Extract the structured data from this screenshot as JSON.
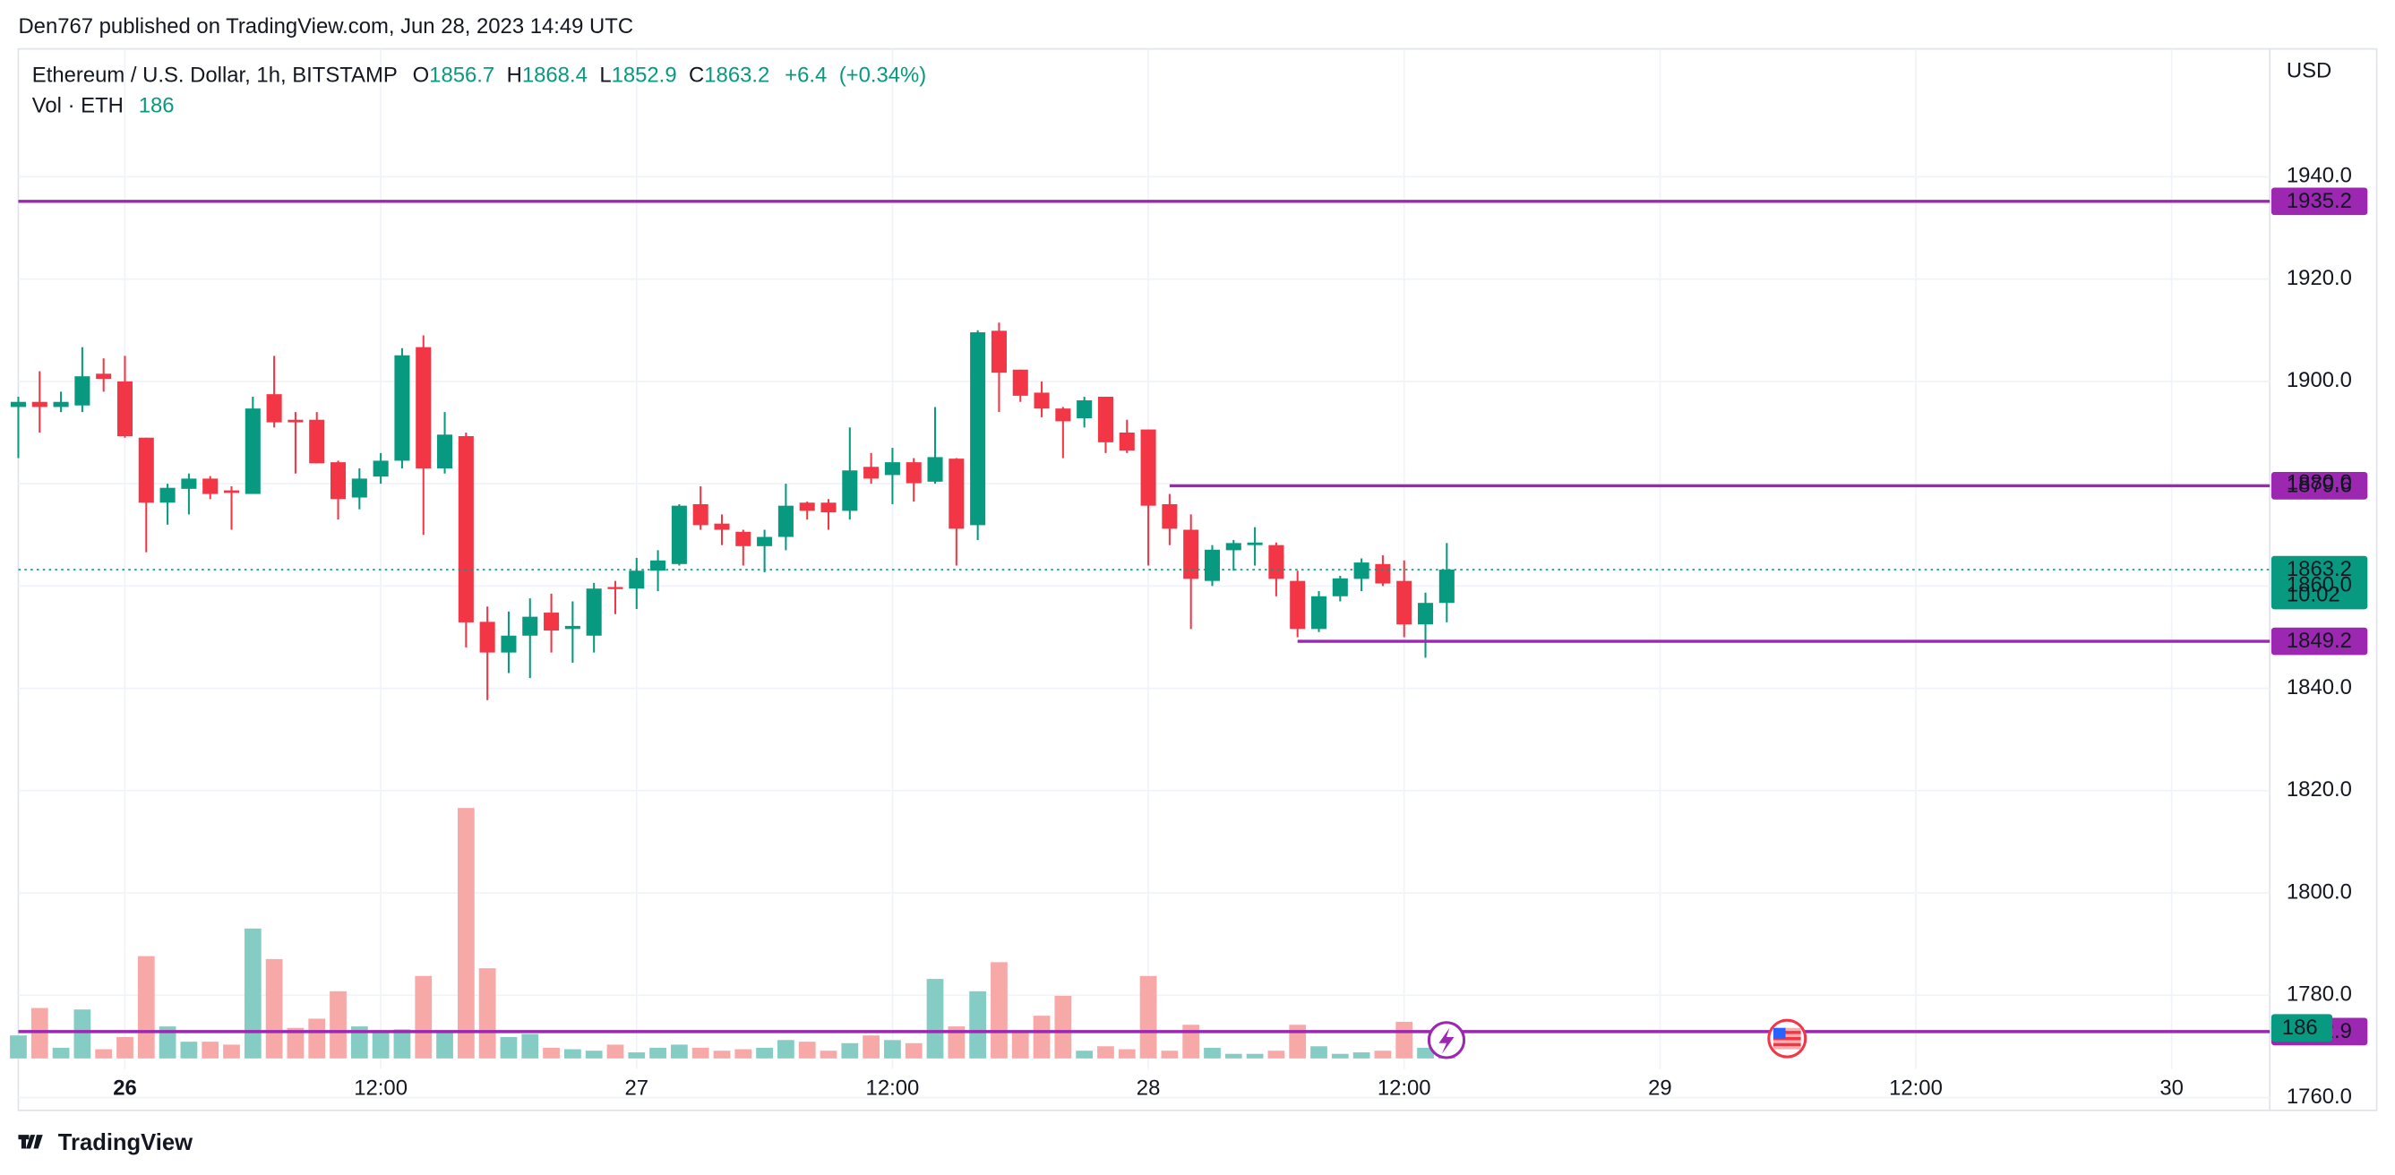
{
  "header": "Den767 published on TradingView.com, Jun 28, 2023 14:49 UTC",
  "brand": "TradingView",
  "chart_data": {
    "type": "candlestick",
    "title": "Ethereum / U.S. Dollar, 1h, BITSTAMP",
    "ohlc_labels": [
      "O",
      "H",
      "L",
      "C"
    ],
    "change": {
      "value": 6.4,
      "label": "+6.4"
    },
    "change_pct": {
      "value": 0.34,
      "label": "(+0.34%)"
    },
    "volume_label": "Vol · ETH",
    "currency": "USD",
    "countdown": "10:02",
    "up_color": "#089981",
    "down_color": "#f23645",
    "up_volume_color": "#85cdc4",
    "down_volume_color": "#f7a9a8",
    "level_color": "#9c27b0",
    "grid": true,
    "xlim": [
      -5,
      100.6
    ],
    "xticks": [
      {
        "value": 0,
        "label": "26"
      },
      {
        "value": 12,
        "label": "12:00"
      },
      {
        "value": 24,
        "label": "27"
      },
      {
        "value": 36,
        "label": "12:00"
      },
      {
        "value": 48,
        "label": "28"
      },
      {
        "value": 60,
        "label": "12:00"
      },
      {
        "value": 72,
        "label": "29"
      },
      {
        "value": 84,
        "label": "12:00"
      },
      {
        "value": 96,
        "label": "30"
      }
    ],
    "ylim": [
      1757.5,
      1965
    ],
    "yticks": [
      {
        "value": 1760,
        "label": "1760.0"
      },
      {
        "value": 1780,
        "label": "1780.0"
      },
      {
        "value": 1800,
        "label": "1800.0"
      },
      {
        "value": 1820,
        "label": "1820.0"
      },
      {
        "value": 1840,
        "label": "1840.0"
      },
      {
        "value": 1860,
        "label": "1860.0"
      },
      {
        "value": 1880,
        "label": "1880.0"
      },
      {
        "value": 1900,
        "label": "1900.0"
      },
      {
        "value": 1920,
        "label": "1920.0"
      },
      {
        "value": 1940,
        "label": "1940.0"
      }
    ],
    "levels": [
      {
        "value": 1935.2
      },
      {
        "value": 1879.6,
        "from": 49
      },
      {
        "value": 1849.2,
        "from": 55
      },
      {
        "value": 1772.9
      }
    ],
    "candles": {
      "x": [
        -5,
        -4,
        -3,
        -2,
        -1,
        0,
        1,
        2,
        3,
        4,
        5,
        6,
        7,
        8,
        9,
        10,
        11,
        12,
        13,
        14,
        15,
        16,
        17,
        18,
        19,
        20,
        21,
        22,
        23,
        24,
        25,
        26,
        27,
        28,
        29,
        30,
        31,
        32,
        33,
        34,
        35,
        36,
        37,
        38,
        39,
        40,
        41,
        42,
        43,
        44,
        45,
        46,
        47,
        48,
        49,
        50,
        51,
        52,
        53,
        54,
        55,
        56,
        57,
        58,
        59,
        60,
        61,
        62
      ],
      "open": [
        1895,
        1896,
        1895,
        1895.3,
        1901.5,
        1900,
        1889,
        1876.3,
        1879,
        1881,
        1878.7,
        1878,
        1897.5,
        1892.5,
        1892.5,
        1884.2,
        1877.3,
        1881.4,
        1884.5,
        1906.7,
        1883,
        1889.3,
        1853,
        1847,
        1850.3,
        1854.8,
        1851.6,
        1850.3,
        1859.8,
        1859.5,
        1863,
        1864.3,
        1876,
        1872.2,
        1870.6,
        1867.8,
        1869.6,
        1876.3,
        1876.3,
        1874.7,
        1883.3,
        1881.7,
        1884.2,
        1880.4,
        1884.9,
        1871.9,
        1909.9,
        1902.3,
        1897.8,
        1894.7,
        1892.8,
        1897,
        1890,
        1890.6,
        1876,
        1871,
        1861,
        1867,
        1868,
        1868,
        1861,
        1851.6,
        1858,
        1861.4,
        1864.3,
        1861,
        1852.5,
        1856.7
      ],
      "high": [
        1897,
        1902,
        1898,
        1906.7,
        1904.5,
        1905,
        1889,
        1880,
        1882,
        1881.5,
        1879.5,
        1897,
        1905,
        1894,
        1894,
        1884.5,
        1883,
        1886,
        1906.5,
        1909,
        1894,
        1890,
        1856,
        1855,
        1857.6,
        1858.5,
        1857,
        1860.6,
        1861,
        1865.5,
        1867,
        1876,
        1879.5,
        1874,
        1871,
        1871,
        1880,
        1876.5,
        1877,
        1891,
        1886,
        1887,
        1885,
        1895,
        1885,
        1910,
        1911.5,
        1902.3,
        1900,
        1895,
        1897,
        1897,
        1892.5,
        1890.6,
        1878,
        1874,
        1868,
        1869,
        1871.5,
        1868.5,
        1863,
        1859,
        1862,
        1865.4,
        1866,
        1865,
        1858.7,
        1868.4
      ],
      "low": [
        1885,
        1890,
        1894,
        1894,
        1898,
        1889,
        1866.6,
        1872,
        1874,
        1877,
        1871,
        1878,
        1891,
        1882,
        1884,
        1873,
        1875,
        1880,
        1883,
        1870,
        1882,
        1848,
        1837.7,
        1843,
        1842,
        1847,
        1845,
        1847,
        1854.5,
        1855.5,
        1859,
        1864,
        1871,
        1868,
        1864,
        1862.7,
        1867,
        1873,
        1871,
        1873,
        1880,
        1876,
        1876.5,
        1880,
        1864,
        1869,
        1894,
        1896,
        1893,
        1885,
        1891,
        1886,
        1886,
        1864,
        1868,
        1851.6,
        1860,
        1863,
        1864,
        1858,
        1850,
        1851,
        1857,
        1859,
        1860,
        1850,
        1846,
        1852.9
      ],
      "close": [
        1896,
        1895,
        1896,
        1901,
        1900.5,
        1889.3,
        1876.3,
        1879.2,
        1881,
        1878,
        1878.2,
        1894.7,
        1892,
        1892,
        1884,
        1877,
        1881,
        1884.5,
        1905.1,
        1883,
        1889.6,
        1852.9,
        1847,
        1850.3,
        1854,
        1851.3,
        1852.2,
        1859.5,
        1859.4,
        1863,
        1865,
        1875.7,
        1871.9,
        1871,
        1867.8,
        1869.6,
        1875.7,
        1874.7,
        1874.4,
        1882.6,
        1881,
        1884.2,
        1880.1,
        1885.2,
        1871.2,
        1909.6,
        1901.7,
        1897.2,
        1894.7,
        1892.2,
        1896.3,
        1888.1,
        1886.5,
        1875.7,
        1871.2,
        1861.4,
        1867.1,
        1868.4,
        1868.5,
        1861.4,
        1851.6,
        1858,
        1861.5,
        1864.6,
        1860.5,
        1852.5,
        1856.7,
        1863.2
      ],
      "volume": [
        140,
        307,
        65,
        298,
        56,
        130,
        623,
        195,
        102,
        102,
        84,
        791,
        605,
        186,
        242,
        409,
        195,
        158,
        177,
        502,
        158,
        1525,
        549,
        130,
        149,
        65,
        56,
        47,
        84,
        37,
        65,
        84,
        65,
        47,
        56,
        65,
        112,
        102,
        47,
        93,
        140,
        112,
        93,
        484,
        195,
        409,
        586,
        158,
        260,
        381,
        47,
        74,
        56,
        502,
        47,
        205,
        65,
        28,
        28,
        47,
        205,
        74,
        28,
        37,
        47,
        223,
        65,
        186
      ]
    }
  }
}
